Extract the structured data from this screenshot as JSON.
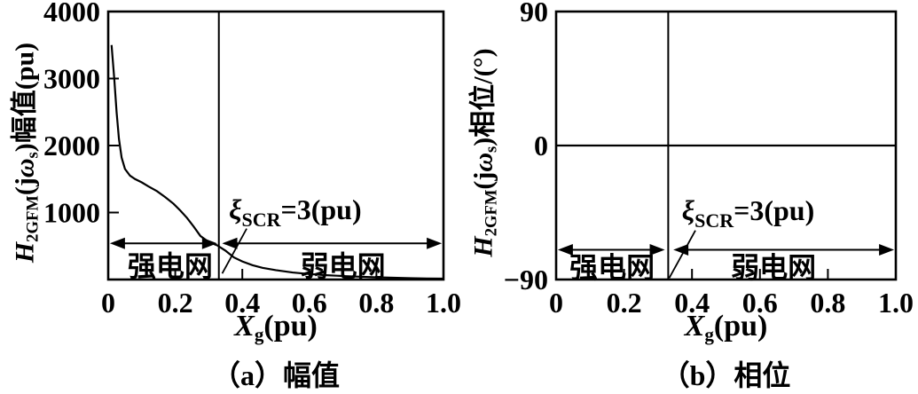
{
  "colors": {
    "ink": "#000000",
    "background": "#ffffff"
  },
  "labels": {
    "panel_a": {
      "caption": "（a）幅值",
      "xlabel": {
        "X": "X",
        "sub": "g",
        "rest": "(pu)"
      },
      "ylabel": {
        "H": "H",
        "Hsub": "2GFM",
        "jopen": "(j",
        "omega": "ω",
        "osub": "s",
        "close": ")",
        "tail": "幅值(pu)"
      }
    },
    "panel_b": {
      "caption": "（b）相位",
      "xlabel": {
        "X": "X",
        "sub": "g",
        "rest": "(pu)"
      },
      "ylabel": {
        "H": "H",
        "Hsub": "2GFM",
        "jopen": "(j",
        "omega": "ω",
        "osub": "s",
        "close": ")",
        "tail": "相位/(°)"
      }
    }
  },
  "chart_data": [
    {
      "type": "line",
      "panel": "a",
      "title": "（a）幅值",
      "xlabel": "Xg(pu)",
      "ylabel": "H2GFM(jωs)幅值(pu)",
      "xlim": [
        0,
        1.0
      ],
      "ylim": [
        0,
        4000
      ],
      "grid": false,
      "xticks": [
        0,
        0.2,
        0.4,
        0.6,
        0.8,
        1.0
      ],
      "xtick_labels": [
        "0",
        "0.2",
        "0.4",
        "0.6",
        "0.8",
        "1.0"
      ],
      "yticks": [
        0,
        1000,
        2000,
        3000,
        4000
      ],
      "ytick_labels": [
        "",
        "1000",
        "2000",
        "3000",
        "4000"
      ],
      "series": [
        {
          "name": "H2GFM magnitude vs Xg",
          "x": [
            0.01,
            0.014,
            0.018,
            0.025,
            0.032,
            0.04,
            0.05,
            0.065,
            0.08,
            0.1,
            0.12,
            0.145,
            0.17,
            0.195,
            0.215,
            0.235,
            0.255,
            0.275,
            0.3,
            0.325,
            0.35,
            0.375,
            0.4,
            0.43,
            0.46,
            0.5,
            0.55,
            0.6,
            0.65,
            0.7,
            0.75,
            0.8,
            0.85,
            0.9,
            0.95,
            1.0
          ],
          "y": [
            3500,
            3250,
            3000,
            2500,
            2100,
            1820,
            1650,
            1550,
            1500,
            1450,
            1390,
            1320,
            1230,
            1130,
            1030,
            920,
            790,
            650,
            560,
            510,
            430,
            330,
            270,
            215,
            175,
            140,
            105,
            82,
            65,
            52,
            42,
            33,
            26,
            21,
            16,
            13
          ]
        }
      ],
      "vline_x": 0.33,
      "annotation": {
        "text": "ξSCR=3(pu)",
        "xi": "ξ",
        "sub": "SCR",
        "rest": "=3(pu)",
        "text_x": 0.36,
        "text_y": 900,
        "leader": [
          [
            0.413,
            760
          ],
          [
            0.34,
            90
          ]
        ]
      },
      "regions": {
        "arrow_y": 540,
        "label_y": 200,
        "items": [
          {
            "label": "强电网",
            "from": 0.005,
            "to": 0.325,
            "label_x": 0.185
          },
          {
            "label": "弱电网",
            "from": 0.34,
            "to": 0.995,
            "label_x": 0.7
          }
        ]
      }
    },
    {
      "type": "line",
      "panel": "b",
      "title": "（b）相位",
      "xlabel": "Xg(pu)",
      "ylabel": "H2GFM(jωs)相位/(°)",
      "xlim": [
        0,
        1.0
      ],
      "ylim": [
        -90,
        90
      ],
      "grid": false,
      "xticks": [
        0,
        0.2,
        0.4,
        0.6,
        0.8,
        1.0
      ],
      "xtick_labels": [
        "0",
        "0.2",
        "0.4",
        "0.6",
        "0.8",
        "1.0"
      ],
      "yticks": [
        -90,
        0,
        90
      ],
      "ytick_labels": [
        "−90",
        "0",
        "90"
      ],
      "series": [
        {
          "name": "H2GFM phase vs Xg",
          "x": [
            0,
            1.0
          ],
          "y": [
            0,
            0
          ]
        }
      ],
      "vline_x": 0.33,
      "annotation": {
        "text": "ξSCR=3(pu)",
        "xi": "ξ",
        "sub": "SCR",
        "rest": "=3(pu)",
        "text_x": 0.37,
        "text_y": -50,
        "leader": [
          [
            0.41,
            -57
          ],
          [
            0.333,
            -89
          ]
        ]
      },
      "regions": {
        "arrow_y": -70,
        "label_y": -82,
        "items": [
          {
            "label": "强电网",
            "from": 0.005,
            "to": 0.32,
            "label_x": 0.165
          },
          {
            "label": "弱电网",
            "from": 0.345,
            "to": 0.995,
            "label_x": 0.64
          }
        ]
      }
    }
  ]
}
